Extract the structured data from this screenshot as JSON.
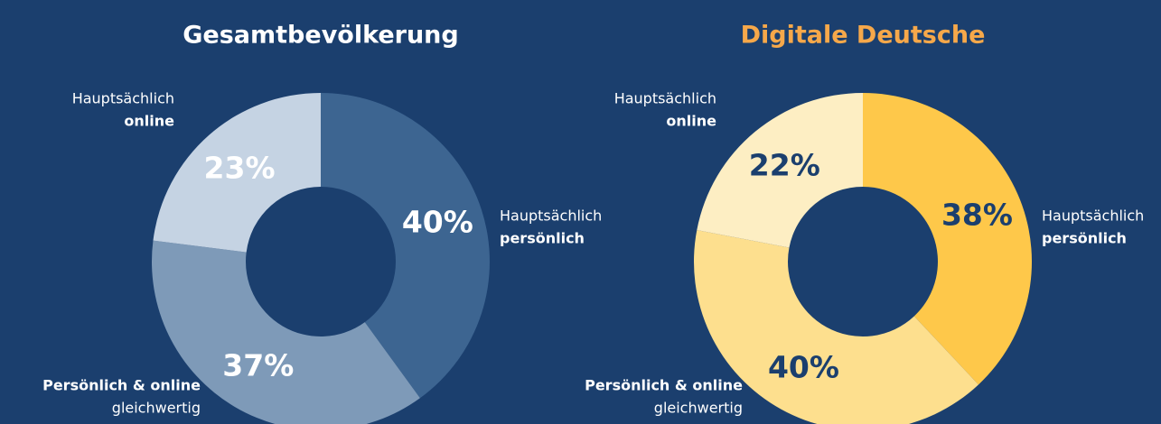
{
  "chart_data": [
    {
      "type": "donut",
      "title": "Gesamtbevölkerung",
      "title_color": "#ffffff",
      "categories": [
        [
          "Hauptsächlich",
          "persönlich"
        ],
        [
          "Persönlich & online",
          "gleichwertig"
        ],
        [
          "Hauptsächlich",
          "online"
        ]
      ],
      "values": [
        40,
        37,
        23
      ],
      "value_labels": [
        "40%",
        "37%",
        "23%"
      ],
      "colors": [
        "#3d6591",
        "#7e9ab8",
        "#c5d3e3"
      ],
      "label_color": "#ffffff"
    },
    {
      "type": "donut",
      "title": "Digitale Deutsche",
      "title_color": "#f6a84a",
      "categories": [
        [
          "Hauptsächlich",
          "persönlich"
        ],
        [
          "Persönlich & online",
          "gleichwertig"
        ],
        [
          "Hauptsächlich",
          "online"
        ]
      ],
      "values": [
        38,
        40,
        22
      ],
      "value_labels": [
        "38%",
        "40%",
        "22%"
      ],
      "colors": [
        "#fec84a",
        "#fddf8e",
        "#fdeec3"
      ],
      "label_color": "#1b3f6e"
    }
  ]
}
